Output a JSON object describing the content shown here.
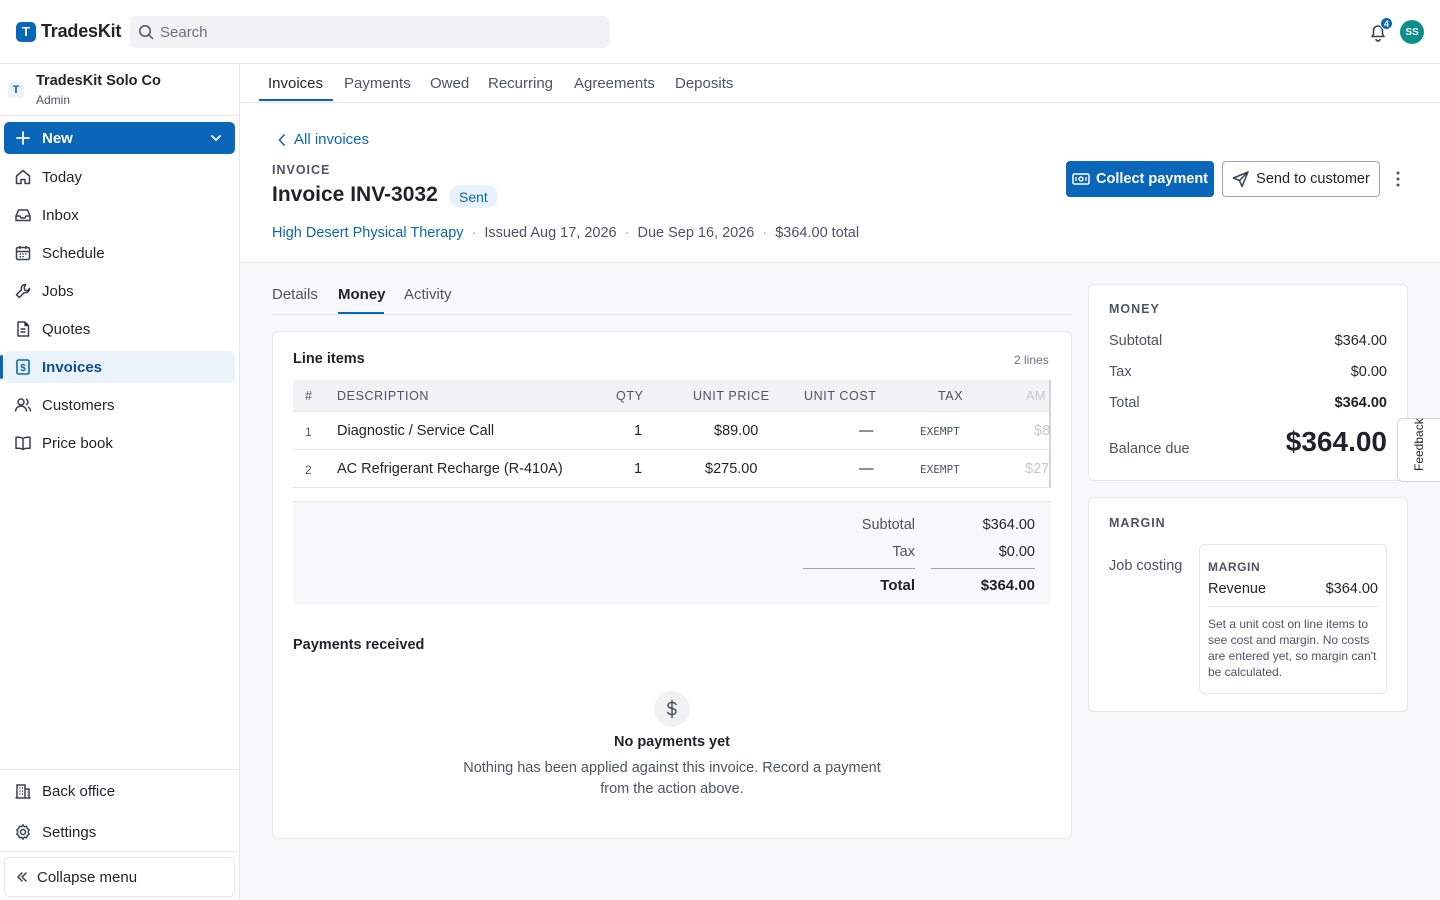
{
  "app": {
    "brand_letter": "T",
    "brand_name": "TradesKit"
  },
  "search": {
    "placeholder": "Search"
  },
  "notifications": {
    "count": "4"
  },
  "user": {
    "initials": "SS"
  },
  "org": {
    "badge": "T",
    "name": "TradesKit Solo Co",
    "role": "Admin"
  },
  "sidebar": {
    "new_label": "New",
    "items": [
      {
        "label": "Today",
        "icon": "home-icon"
      },
      {
        "label": "Inbox",
        "icon": "inbox-icon"
      },
      {
        "label": "Schedule",
        "icon": "calendar-icon"
      },
      {
        "label": "Jobs",
        "icon": "wrench-icon"
      },
      {
        "label": "Quotes",
        "icon": "document-icon"
      },
      {
        "label": "Invoices",
        "icon": "invoice-icon",
        "active": true
      },
      {
        "label": "Customers",
        "icon": "users-icon"
      },
      {
        "label": "Price book",
        "icon": "book-icon"
      }
    ],
    "back_office": "Back office",
    "settings": "Settings",
    "collapse": "Collapse menu"
  },
  "subtabs": [
    "Invoices",
    "Payments",
    "Owed",
    "Recurring",
    "Agreements",
    "Deposits"
  ],
  "header": {
    "back_label": "All invoices",
    "eyebrow": "INVOICE",
    "title": "Invoice INV-3032",
    "status": "Sent",
    "customer": "High Desert Physical Therapy",
    "issued": "Issued Aug 17, 2026",
    "due": "Due Sep 16, 2026",
    "total": "$364.00 total",
    "collect_label": "Collect payment",
    "send_label": "Send to customer"
  },
  "detail_tabs": [
    "Details",
    "Money",
    "Activity"
  ],
  "line_items": {
    "title": "Line items",
    "count": "2 lines",
    "columns": [
      "#",
      "DESCRIPTION",
      "QTY",
      "UNIT PRICE",
      "UNIT COST",
      "TAX",
      "AM"
    ],
    "rows": [
      {
        "num": "1",
        "desc": "Diagnostic / Service Call",
        "qty": "1",
        "price": "$89.00",
        "cost": "—",
        "tax": "EXEMPT",
        "amount": "$8"
      },
      {
        "num": "2",
        "desc": "AC Refrigerant Recharge (R-410A)",
        "qty": "1",
        "price": "$275.00",
        "cost": "—",
        "tax": "EXEMPT",
        "amount": "$27"
      }
    ],
    "subtotal_label": "Subtotal",
    "subtotal": "$364.00",
    "tax_label": "Tax",
    "tax": "$0.00",
    "total_label": "Total",
    "total": "$364.00"
  },
  "payments": {
    "title": "Payments received",
    "empty_title": "No payments yet",
    "empty_text": "Nothing has been applied against this invoice. Record a payment from the action above."
  },
  "money": {
    "title": "MONEY",
    "subtotal_label": "Subtotal",
    "subtotal": "$364.00",
    "tax_label": "Tax",
    "tax": "$0.00",
    "total_label": "Total",
    "total": "$364.00",
    "balance_label": "Balance due",
    "balance": "$364.00"
  },
  "margin": {
    "title": "MARGIN",
    "job_costing": "Job costing",
    "inner_title": "MARGIN",
    "revenue_label": "Revenue",
    "revenue": "$364.00",
    "note": "Set a unit cost on line items to see cost and margin. No costs are entered yet, so margin can't be calculated."
  },
  "feedback": "Feedback",
  "colors": {
    "accent": "#0a66b8",
    "avatar": "#0e8f8a"
  }
}
